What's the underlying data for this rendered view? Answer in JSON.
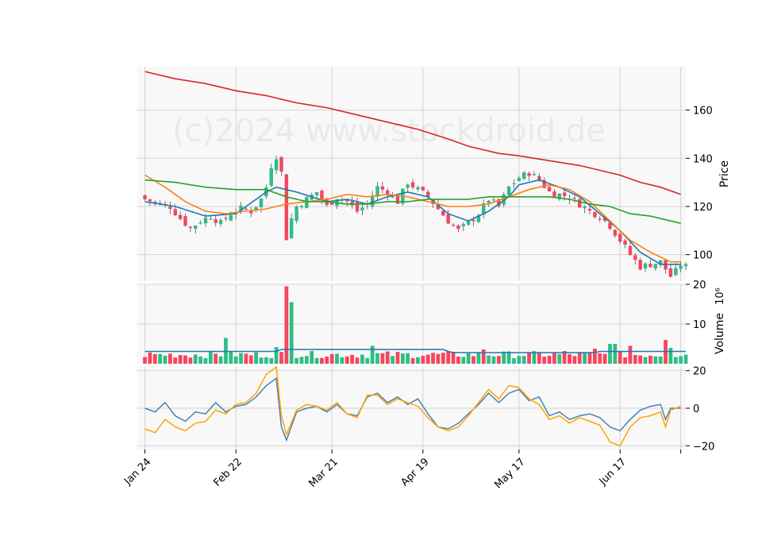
{
  "watermark": "(c)2024 www.stockdroid.de",
  "colors": {
    "up": "#2ebd85",
    "down": "#f6465d",
    "sma_fast": "#1f77b4",
    "sma_mid": "#ff7f0e",
    "sma_slow": "#2ca02c",
    "sma_long": "#d62728",
    "vol_avg": "#1f77b4",
    "osc_a": "#4682b4",
    "osc_b": "#ffa500",
    "panel_bg": "#f8f8f8",
    "grid": "#d3d3d3"
  },
  "chart_data": [
    {
      "type": "candlestick",
      "ylabel": "Price",
      "ylim": [
        89,
        178
      ],
      "yticks": [
        100,
        120,
        140,
        160
      ],
      "xlim": [
        -1.5,
        107
      ],
      "xticks": [
        0,
        18,
        37,
        55,
        74,
        94,
        106
      ],
      "xticklabels": [
        "Jan 24",
        "Feb 22",
        "Mar 21",
        "Apr 19",
        "May 17",
        "Jun 17",
        ""
      ],
      "grid": true,
      "ohlc_close_anchors": [
        [
          0,
          123
        ],
        [
          3,
          121
        ],
        [
          5,
          120
        ],
        [
          7,
          115
        ],
        [
          9,
          111
        ],
        [
          11,
          114
        ],
        [
          13,
          116
        ],
        [
          15,
          113
        ],
        [
          17,
          117
        ],
        [
          19,
          119
        ],
        [
          21,
          118
        ],
        [
          23,
          123
        ],
        [
          24,
          128
        ],
        [
          25,
          137
        ],
        [
          26,
          141
        ],
        [
          27,
          134
        ],
        [
          28,
          107
        ],
        [
          29,
          115
        ],
        [
          30,
          120
        ],
        [
          32,
          123
        ],
        [
          34,
          126
        ],
        [
          36,
          120
        ],
        [
          38,
          124
        ],
        [
          40,
          122
        ],
        [
          42,
          118
        ],
        [
          44,
          121
        ],
        [
          46,
          128
        ],
        [
          48,
          126
        ],
        [
          50,
          122
        ],
        [
          52,
          130
        ],
        [
          54,
          127
        ],
        [
          56,
          124
        ],
        [
          58,
          119
        ],
        [
          60,
          114
        ],
        [
          62,
          110
        ],
        [
          64,
          113
        ],
        [
          66,
          117
        ],
        [
          68,
          123
        ],
        [
          70,
          120
        ],
        [
          72,
          128
        ],
        [
          74,
          132
        ],
        [
          76,
          134
        ],
        [
          78,
          131
        ],
        [
          80,
          126
        ],
        [
          82,
          125
        ],
        [
          84,
          124
        ],
        [
          86,
          121
        ],
        [
          88,
          118
        ],
        [
          90,
          116
        ],
        [
          92,
          112
        ],
        [
          94,
          106
        ],
        [
          96,
          100
        ],
        [
          98,
          95
        ],
        [
          100,
          96
        ],
        [
          102,
          97
        ],
        [
          104,
          91
        ],
        [
          105,
          93
        ],
        [
          106,
          96
        ],
        [
          107,
          95
        ]
      ]
    },
    {
      "type": "line",
      "name": "overlays",
      "series": [
        {
          "key": "sma_fast",
          "points": [
            [
              0,
              122
            ],
            [
              6,
              120
            ],
            [
              12,
              116
            ],
            [
              18,
              117
            ],
            [
              24,
              126
            ],
            [
              26,
              128
            ],
            [
              30,
              126
            ],
            [
              36,
              122
            ],
            [
              40,
              123
            ],
            [
              44,
              121
            ],
            [
              48,
              124
            ],
            [
              52,
              126
            ],
            [
              56,
              124
            ],
            [
              60,
              117
            ],
            [
              64,
              114
            ],
            [
              68,
              118
            ],
            [
              72,
              124
            ],
            [
              74,
              129
            ],
            [
              78,
              131
            ],
            [
              82,
              128
            ],
            [
              86,
              124
            ],
            [
              90,
              117
            ],
            [
              94,
              110
            ],
            [
              98,
              101
            ],
            [
              102,
              96
            ],
            [
              106,
              96
            ]
          ]
        },
        {
          "key": "sma_mid",
          "points": [
            [
              0,
              133
            ],
            [
              4,
              128
            ],
            [
              8,
              122
            ],
            [
              12,
              118
            ],
            [
              16,
              117
            ],
            [
              20,
              118
            ],
            [
              24,
              119
            ],
            [
              28,
              121
            ],
            [
              32,
              122
            ],
            [
              36,
              123
            ],
            [
              40,
              125
            ],
            [
              44,
              124
            ],
            [
              48,
              125
            ],
            [
              52,
              124
            ],
            [
              56,
              122
            ],
            [
              60,
              120
            ],
            [
              64,
              120
            ],
            [
              68,
              121
            ],
            [
              72,
              124
            ],
            [
              76,
              127
            ],
            [
              80,
              129
            ],
            [
              84,
              127
            ],
            [
              88,
              122
            ],
            [
              92,
              114
            ],
            [
              96,
              106
            ],
            [
              100,
              101
            ],
            [
              104,
              97
            ],
            [
              106,
              97
            ]
          ]
        },
        {
          "key": "sma_slow",
          "points": [
            [
              0,
              131
            ],
            [
              6,
              130
            ],
            [
              12,
              128
            ],
            [
              18,
              127
            ],
            [
              24,
              127
            ],
            [
              28,
              124
            ],
            [
              32,
              122
            ],
            [
              36,
              122
            ],
            [
              40,
              121
            ],
            [
              44,
              121
            ],
            [
              48,
              122
            ],
            [
              52,
              122
            ],
            [
              56,
              123
            ],
            [
              60,
              123
            ],
            [
              64,
              123
            ],
            [
              68,
              124
            ],
            [
              72,
              124
            ],
            [
              76,
              124
            ],
            [
              80,
              124
            ],
            [
              84,
              123
            ],
            [
              88,
              121
            ],
            [
              92,
              120
            ],
            [
              96,
              117
            ],
            [
              100,
              116
            ],
            [
              104,
              114
            ],
            [
              106,
              113
            ]
          ]
        },
        {
          "key": "sma_long",
          "points": [
            [
              0,
              176
            ],
            [
              6,
              173
            ],
            [
              12,
              171
            ],
            [
              18,
              168
            ],
            [
              24,
              166
            ],
            [
              30,
              163
            ],
            [
              36,
              161
            ],
            [
              42,
              158
            ],
            [
              48,
              155
            ],
            [
              54,
              152
            ],
            [
              60,
              148
            ],
            [
              64,
              145
            ],
            [
              70,
              142
            ],
            [
              74,
              141
            ],
            [
              80,
              139
            ],
            [
              86,
              137
            ],
            [
              90,
              135
            ],
            [
              94,
              133
            ],
            [
              98,
              130
            ],
            [
              102,
              128
            ],
            [
              106,
              125
            ]
          ]
        }
      ]
    },
    {
      "type": "bar",
      "name": "volume",
      "ylabel": "Volume",
      "ylabel_exponent": "10⁶",
      "ylim": [
        0,
        20
      ],
      "yticks": [
        10,
        20
      ],
      "spikes": [
        [
          28,
          19.5,
          "down"
        ],
        [
          29,
          15.5,
          "up"
        ],
        [
          16,
          6.5,
          "up"
        ],
        [
          26,
          4.2,
          "up"
        ],
        [
          45,
          4.5,
          "up"
        ],
        [
          67,
          3.6,
          "down"
        ],
        [
          83,
          3.2,
          "down"
        ],
        [
          89,
          3.8,
          "down"
        ],
        [
          92,
          5.0,
          "up"
        ],
        [
          93,
          5.0,
          "up"
        ],
        [
          96,
          4.5,
          "down"
        ],
        [
          103,
          6.0,
          "down"
        ],
        [
          104,
          4.0,
          "up"
        ]
      ],
      "avg_level": 3.0
    },
    {
      "type": "line",
      "name": "oscillator",
      "ylim": [
        -22,
        22
      ],
      "yticks": [
        -20,
        0,
        20
      ],
      "series": [
        {
          "key": "osc_a",
          "points": [
            [
              0,
              0
            ],
            [
              2,
              -2
            ],
            [
              4,
              3
            ],
            [
              6,
              -4
            ],
            [
              8,
              -7
            ],
            [
              10,
              -2
            ],
            [
              12,
              -3
            ],
            [
              14,
              3
            ],
            [
              16,
              -2
            ],
            [
              18,
              1
            ],
            [
              20,
              2
            ],
            [
              22,
              6
            ],
            [
              24,
              12
            ],
            [
              26,
              16
            ],
            [
              27,
              -10
            ],
            [
              28,
              -17
            ],
            [
              30,
              -2
            ],
            [
              32,
              0
            ],
            [
              34,
              1
            ],
            [
              36,
              -2
            ],
            [
              38,
              2
            ],
            [
              40,
              -3
            ],
            [
              42,
              -4
            ],
            [
              44,
              6
            ],
            [
              46,
              8
            ],
            [
              48,
              3
            ],
            [
              50,
              6
            ],
            [
              52,
              2
            ],
            [
              54,
              5
            ],
            [
              56,
              -3
            ],
            [
              58,
              -10
            ],
            [
              60,
              -11
            ],
            [
              62,
              -8
            ],
            [
              64,
              -3
            ],
            [
              66,
              2
            ],
            [
              68,
              8
            ],
            [
              70,
              3
            ],
            [
              72,
              8
            ],
            [
              74,
              10
            ],
            [
              76,
              4
            ],
            [
              78,
              6
            ],
            [
              80,
              -4
            ],
            [
              82,
              -2
            ],
            [
              84,
              -6
            ],
            [
              86,
              -4
            ],
            [
              88,
              -3
            ],
            [
              90,
              -5
            ],
            [
              92,
              -10
            ],
            [
              94,
              -12
            ],
            [
              96,
              -6
            ],
            [
              98,
              -1
            ],
            [
              100,
              1
            ],
            [
              102,
              2
            ],
            [
              103,
              -6
            ],
            [
              104,
              0
            ],
            [
              106,
              0
            ]
          ]
        },
        {
          "key": "osc_b",
          "points": [
            [
              0,
              -11
            ],
            [
              2,
              -13
            ],
            [
              4,
              -6
            ],
            [
              6,
              -10
            ],
            [
              8,
              -12
            ],
            [
              10,
              -8
            ],
            [
              12,
              -7
            ],
            [
              14,
              -1
            ],
            [
              16,
              -3
            ],
            [
              18,
              2
            ],
            [
              20,
              3
            ],
            [
              22,
              8
            ],
            [
              24,
              18
            ],
            [
              26,
              22
            ],
            [
              27,
              -4
            ],
            [
              28,
              -14
            ],
            [
              30,
              -1
            ],
            [
              32,
              2
            ],
            [
              34,
              1
            ],
            [
              36,
              -1
            ],
            [
              38,
              3
            ],
            [
              40,
              -3
            ],
            [
              42,
              -5
            ],
            [
              44,
              7
            ],
            [
              46,
              7
            ],
            [
              48,
              2
            ],
            [
              50,
              5
            ],
            [
              52,
              3
            ],
            [
              54,
              1
            ],
            [
              56,
              -5
            ],
            [
              58,
              -10
            ],
            [
              60,
              -12
            ],
            [
              62,
              -10
            ],
            [
              64,
              -4
            ],
            [
              66,
              3
            ],
            [
              68,
              10
            ],
            [
              70,
              5
            ],
            [
              72,
              12
            ],
            [
              74,
              11
            ],
            [
              76,
              5
            ],
            [
              78,
              2
            ],
            [
              80,
              -6
            ],
            [
              82,
              -4
            ],
            [
              84,
              -8
            ],
            [
              86,
              -5
            ],
            [
              88,
              -7
            ],
            [
              90,
              -9
            ],
            [
              92,
              -18
            ],
            [
              94,
              -20
            ],
            [
              96,
              -10
            ],
            [
              98,
              -5
            ],
            [
              100,
              -4
            ],
            [
              102,
              -2
            ],
            [
              103,
              -10
            ],
            [
              104,
              -1
            ],
            [
              106,
              1
            ]
          ]
        }
      ]
    }
  ]
}
